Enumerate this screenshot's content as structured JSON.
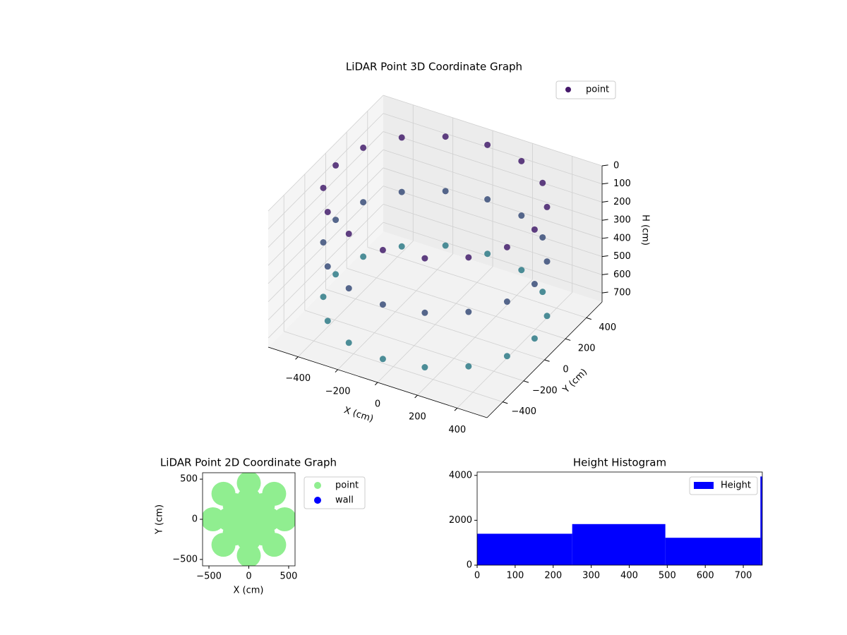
{
  "chart_data": [
    {
      "type": "scatter3d",
      "title": "LiDAR Point 3D Coordinate Graph",
      "xlabel": "X (cm)",
      "ylabel": "Y (cm)",
      "zlabel": "H (cm)",
      "xlim": [
        -550,
        550
      ],
      "ylim": [
        -550,
        550
      ],
      "zlim": [
        0,
        750
      ],
      "z_inverted": true,
      "xticks": [
        {
          "value": -400,
          "label": "−400"
        },
        {
          "value": -200,
          "label": "−200"
        },
        0,
        200,
        400
      ],
      "yticks": [
        {
          "value": -400,
          "label": "−400"
        },
        {
          "value": -200,
          "label": "−200"
        },
        0,
        200,
        400
      ],
      "zticks": [
        0,
        100,
        200,
        300,
        400,
        500,
        600,
        700
      ],
      "colormap": [
        "#46176a",
        "#2c8a8b"
      ],
      "legend": "upper right",
      "grid": true,
      "series": [
        {
          "name": "point",
          "color": "#45186a",
          "x": [
            500,
            462,
            354,
            191,
            0,
            -191,
            -354,
            -462,
            -500,
            -462,
            -354,
            -191,
            0,
            191,
            354,
            462,
            500,
            462,
            354,
            191,
            0,
            -191,
            -354,
            -462,
            -500,
            -462,
            -354,
            -191,
            0,
            191,
            354,
            462,
            500,
            462,
            354,
            191,
            0,
            -191,
            -354,
            -462,
            -500,
            -462,
            -354,
            -191,
            0,
            191,
            354,
            462
          ],
          "y": [
            0,
            191,
            354,
            462,
            500,
            462,
            354,
            191,
            0,
            -191,
            -354,
            -462,
            -500,
            -462,
            -354,
            -191,
            0,
            191,
            354,
            462,
            500,
            462,
            354,
            191,
            0,
            -191,
            -354,
            -462,
            -500,
            -462,
            -354,
            -191,
            0,
            191,
            354,
            462,
            500,
            462,
            354,
            191,
            0,
            -191,
            -354,
            -462,
            -500,
            -462,
            -354,
            -191
          ],
          "z": [
            50,
            50,
            50,
            50,
            50,
            50,
            50,
            50,
            50,
            50,
            50,
            50,
            50,
            50,
            50,
            50,
            350,
            350,
            350,
            350,
            350,
            350,
            350,
            350,
            350,
            350,
            350,
            350,
            350,
            350,
            350,
            350,
            650,
            650,
            650,
            650,
            650,
            650,
            650,
            650,
            650,
            650,
            650,
            650,
            650,
            650,
            650,
            650
          ]
        }
      ]
    },
    {
      "type": "scatter",
      "title": "LiDAR Point 2D Coordinate Graph",
      "xlabel": "X (cm)",
      "ylabel": "Y (cm)",
      "xlim": [
        -580,
        580
      ],
      "ylim": [
        -580,
        580
      ],
      "xticks": [
        {
          "value": -500,
          "label": "−500"
        },
        0,
        500
      ],
      "yticks": [
        {
          "value": -500,
          "label": "−500"
        },
        0,
        500
      ],
      "legend": "outside right",
      "series": [
        {
          "name": "point",
          "color": "#90ee90",
          "x": [
            0,
            250,
            177,
            0,
            -177,
            -250,
            -177,
            0,
            177,
            450,
            318,
            0,
            -318,
            -450,
            -318,
            0,
            318
          ],
          "y": [
            0,
            0,
            177,
            250,
            177,
            0,
            -177,
            -250,
            -177,
            0,
            318,
            450,
            318,
            0,
            -318,
            -450,
            -318
          ]
        },
        {
          "name": "wall",
          "color": "#0000ff",
          "x": [],
          "y": []
        }
      ]
    },
    {
      "type": "histogram",
      "title": "Height Histogram",
      "bins": [
        0,
        250,
        495,
        745,
        750
      ],
      "series": [
        {
          "name": "Height",
          "color": "#0000ff",
          "values": [
            1400,
            1830,
            1220,
            3950
          ]
        }
      ],
      "xlim": [
        0,
        750
      ],
      "ylim": [
        0,
        4150
      ],
      "xticks": [
        0,
        100,
        200,
        300,
        400,
        500,
        600,
        700
      ],
      "yticks": [
        0,
        2000,
        4000
      ],
      "legend": "upper right"
    }
  ]
}
